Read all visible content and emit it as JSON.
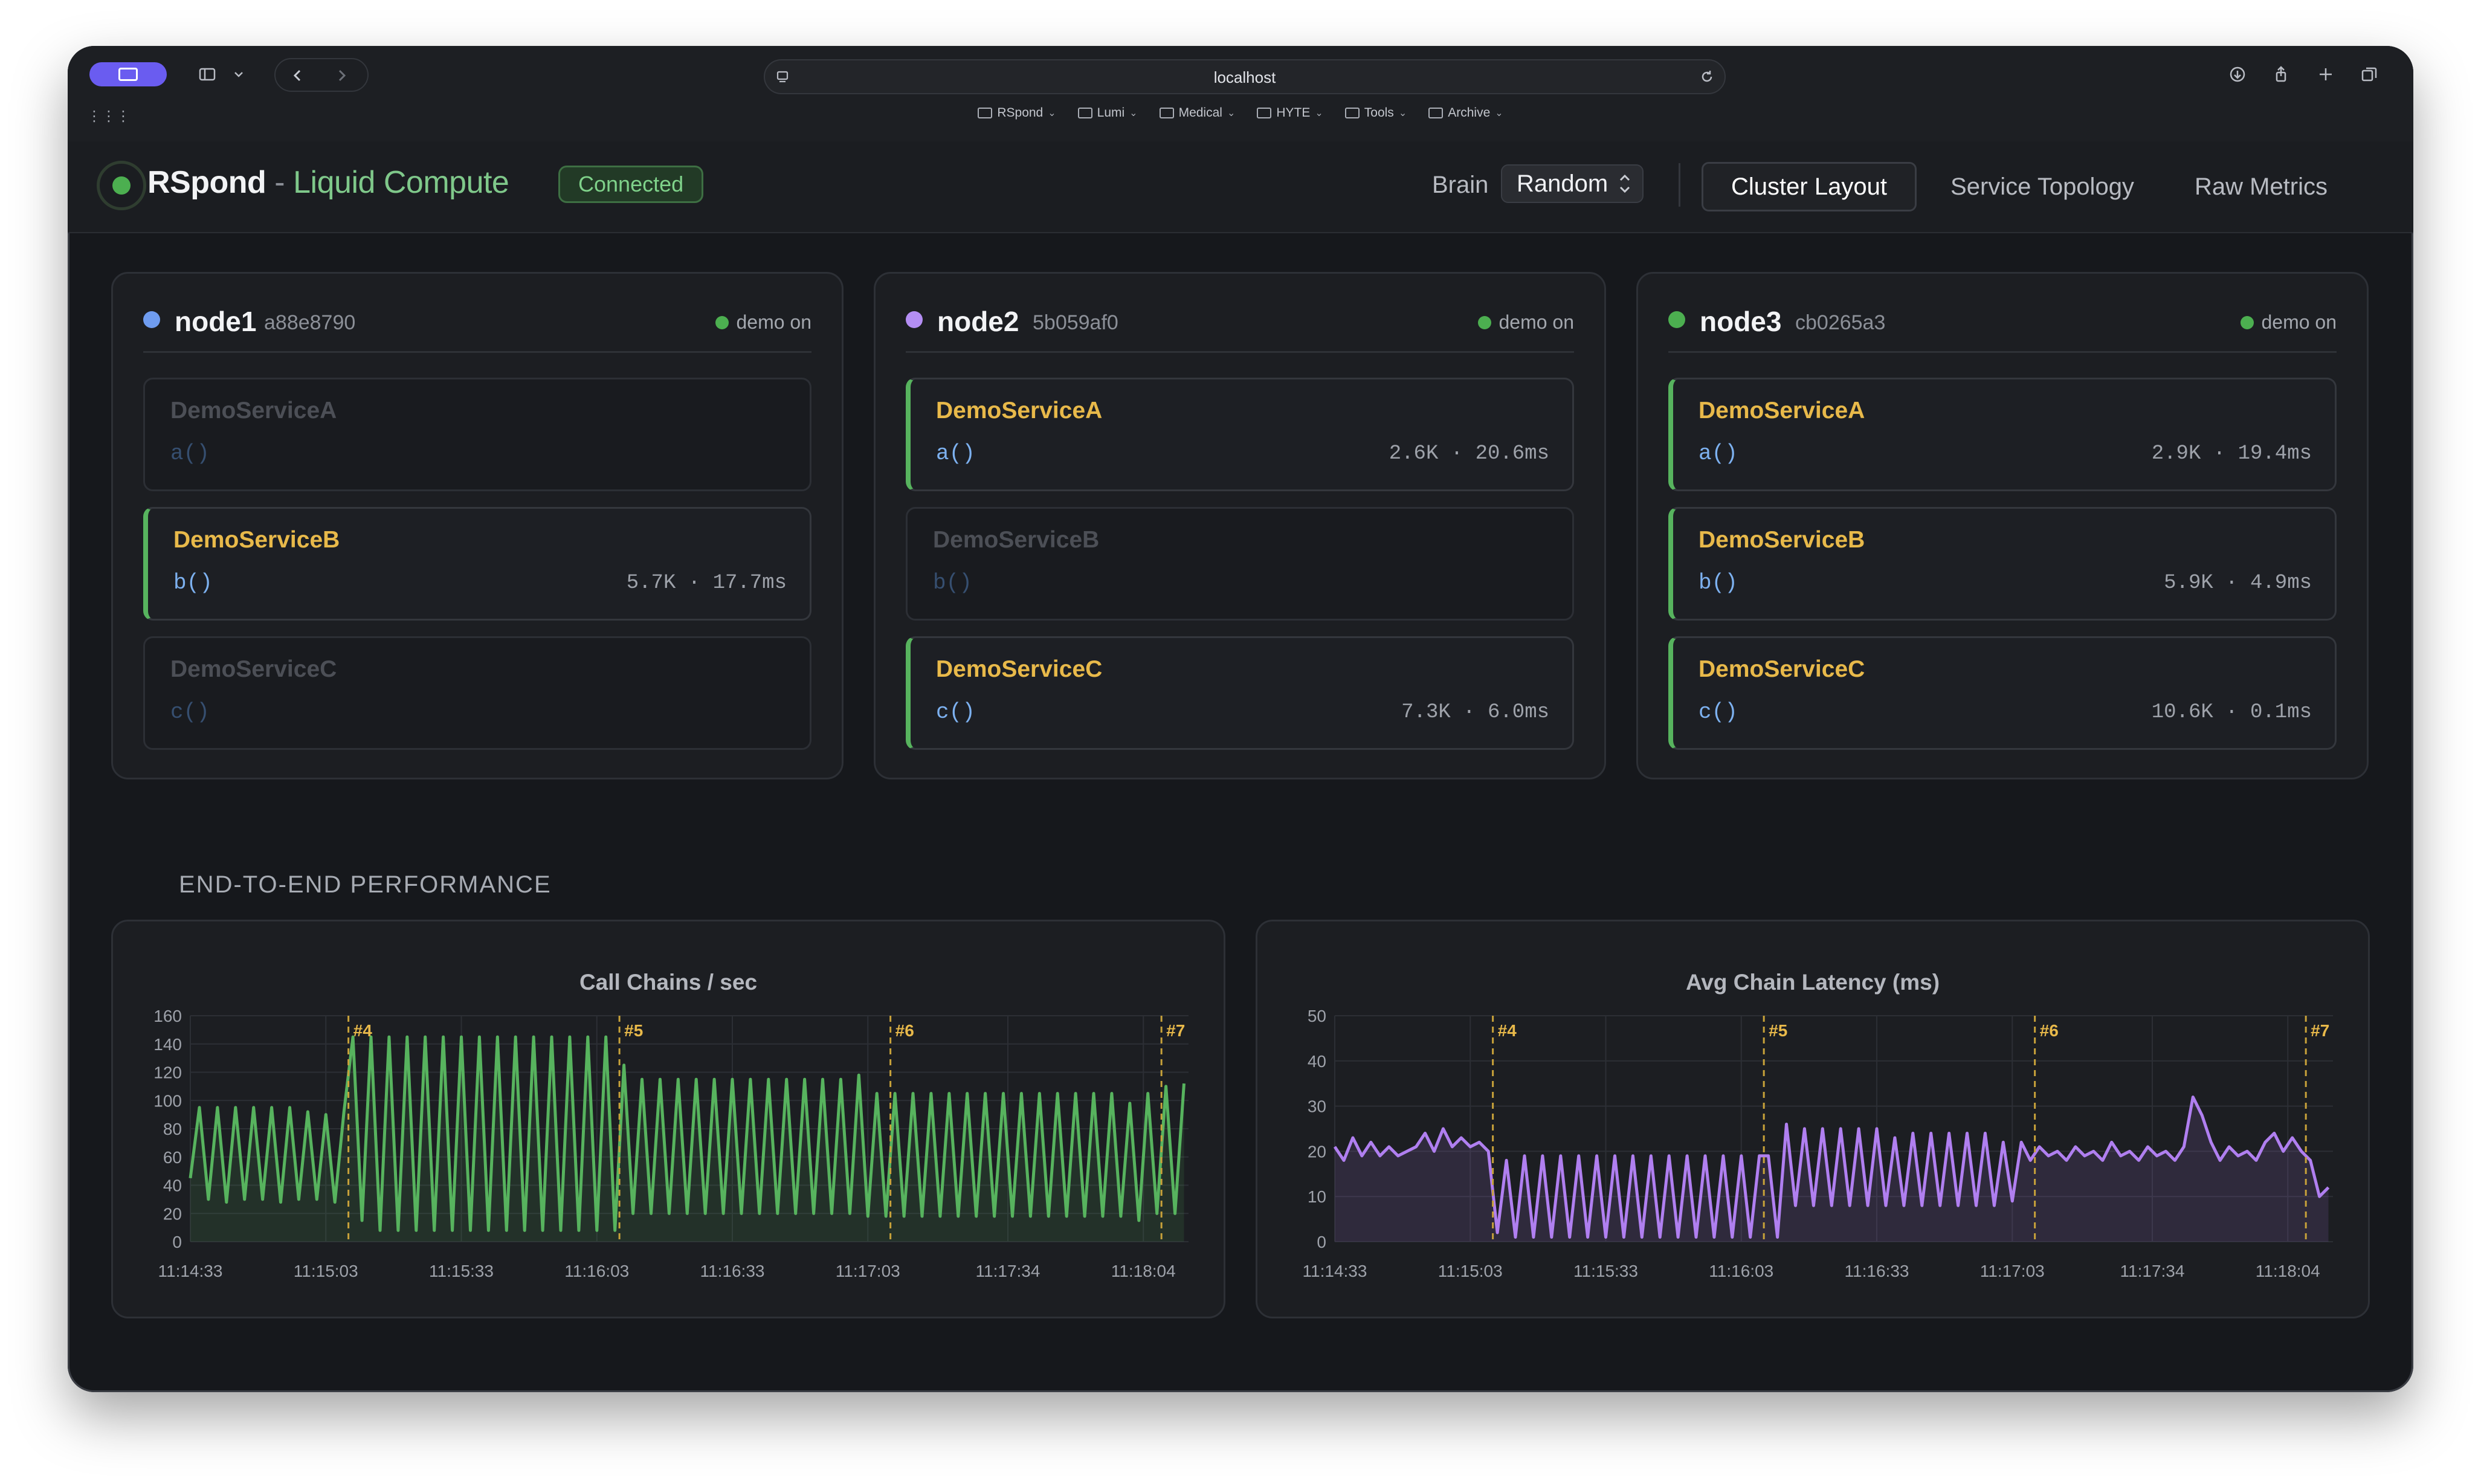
{
  "browser": {
    "url": "localhost",
    "apps_icon": "⋮⋮⋮",
    "bookmarks": [
      {
        "label": "RSpond"
      },
      {
        "label": "Lumi"
      },
      {
        "label": "Medical"
      },
      {
        "label": "HYTE"
      },
      {
        "label": "Tools"
      },
      {
        "label": "Archive"
      }
    ]
  },
  "header": {
    "app_name": "RSpond",
    "separator": "-",
    "subtitle": "Liquid Compute",
    "status": "Connected",
    "brain_label": "Brain",
    "brain_value": "Random",
    "tabs": [
      {
        "label": "Cluster Layout",
        "active": true
      },
      {
        "label": "Service Topology",
        "active": false
      },
      {
        "label": "Raw Metrics",
        "active": false
      }
    ]
  },
  "colors": {
    "node1": "#6f9cf0",
    "node2": "#b48ef4",
    "node3": "#4caf50",
    "active_service": "#e8b94a",
    "accent_green": "#57b35e"
  },
  "nodes": [
    {
      "name": "node1",
      "hash": "a88e8790",
      "demo": "demo on",
      "services": [
        {
          "name": "DemoServiceA",
          "fn": "a()",
          "active": false,
          "metric": ""
        },
        {
          "name": "DemoServiceB",
          "fn": "b()",
          "active": true,
          "metric": "5.7K · 17.7ms"
        },
        {
          "name": "DemoServiceC",
          "fn": "c()",
          "active": false,
          "metric": ""
        }
      ]
    },
    {
      "name": "node2",
      "hash": "5b059af0",
      "demo": "demo on",
      "services": [
        {
          "name": "DemoServiceA",
          "fn": "a()",
          "active": true,
          "metric": "2.6K · 20.6ms"
        },
        {
          "name": "DemoServiceB",
          "fn": "b()",
          "active": false,
          "metric": ""
        },
        {
          "name": "DemoServiceC",
          "fn": "c()",
          "active": true,
          "metric": "7.3K · 6.0ms"
        }
      ]
    },
    {
      "name": "node3",
      "hash": "cb0265a3",
      "demo": "demo on",
      "services": [
        {
          "name": "DemoServiceA",
          "fn": "a()",
          "active": true,
          "metric": "2.9K · 19.4ms"
        },
        {
          "name": "DemoServiceB",
          "fn": "b()",
          "active": true,
          "metric": "5.9K · 4.9ms"
        },
        {
          "name": "DemoServiceC",
          "fn": "c()",
          "active": true,
          "metric": "10.6K · 0.1ms"
        }
      ]
    }
  ],
  "performance": {
    "section_title": "END-TO-END PERFORMANCE"
  },
  "chart_data": [
    {
      "type": "line",
      "title": "Call Chains / sec",
      "color": "#57b35e",
      "ylim": [
        0,
        160
      ],
      "yticks": [
        0,
        20,
        40,
        60,
        80,
        100,
        120,
        140,
        160
      ],
      "xlim": [
        0,
        221
      ],
      "xtick_labels": [
        "11:14:33",
        "11:15:03",
        "11:15:33",
        "11:16:03",
        "11:16:33",
        "11:17:03",
        "11:17:34",
        "11:18:04"
      ],
      "xtick_positions": [
        0,
        30,
        60,
        90,
        120,
        150,
        181,
        211
      ],
      "markers": [
        {
          "label": "#4",
          "x": 35
        },
        {
          "label": "#5",
          "x": 95
        },
        {
          "label": "#6",
          "x": 155
        },
        {
          "label": "#7",
          "x": 215
        }
      ],
      "x": [
        0,
        2,
        4,
        6,
        8,
        10,
        12,
        14,
        16,
        18,
        20,
        22,
        24,
        26,
        28,
        30,
        32,
        34,
        36,
        38,
        40,
        42,
        44,
        46,
        48,
        50,
        52,
        54,
        56,
        58,
        60,
        62,
        64,
        66,
        68,
        70,
        72,
        74,
        76,
        78,
        80,
        82,
        84,
        86,
        88,
        90,
        92,
        94,
        96,
        98,
        100,
        102,
        104,
        106,
        108,
        110,
        112,
        114,
        116,
        118,
        120,
        122,
        124,
        126,
        128,
        130,
        132,
        134,
        136,
        138,
        140,
        142,
        144,
        146,
        148,
        150,
        152,
        154,
        156,
        158,
        160,
        162,
        164,
        166,
        168,
        170,
        172,
        174,
        176,
        178,
        180,
        182,
        184,
        186,
        188,
        190,
        192,
        194,
        196,
        198,
        200,
        202,
        204,
        206,
        208,
        210,
        212,
        214,
        216,
        218,
        220
      ],
      "y": [
        45,
        95,
        30,
        95,
        28,
        95,
        30,
        95,
        30,
        95,
        28,
        95,
        30,
        92,
        30,
        90,
        28,
        92,
        145,
        15,
        145,
        8,
        145,
        8,
        145,
        8,
        145,
        8,
        145,
        8,
        145,
        8,
        145,
        8,
        145,
        8,
        145,
        8,
        145,
        8,
        145,
        8,
        145,
        8,
        145,
        8,
        145,
        8,
        125,
        20,
        115,
        20,
        115,
        20,
        115,
        20,
        115,
        20,
        115,
        20,
        115,
        20,
        115,
        20,
        115,
        20,
        115,
        20,
        115,
        20,
        115,
        20,
        115,
        20,
        118,
        18,
        105,
        18,
        105,
        18,
        105,
        18,
        105,
        18,
        105,
        18,
        105,
        18,
        105,
        18,
        105,
        18,
        105,
        18,
        105,
        18,
        105,
        18,
        105,
        18,
        105,
        18,
        105,
        18,
        98,
        15,
        105,
        20,
        110,
        20,
        112
      ]
    },
    {
      "type": "line",
      "title": "Avg Chain Latency (ms)",
      "color": "#b07ff0",
      "ylim": [
        0,
        50
      ],
      "yticks": [
        0,
        10,
        20,
        30,
        40,
        50
      ],
      "xlim": [
        0,
        221
      ],
      "xtick_labels": [
        "11:14:33",
        "11:15:03",
        "11:15:33",
        "11:16:03",
        "11:16:33",
        "11:17:03",
        "11:17:34",
        "11:18:04"
      ],
      "xtick_positions": [
        0,
        30,
        60,
        90,
        120,
        150,
        181,
        211
      ],
      "markers": [
        {
          "label": "#4",
          "x": 35
        },
        {
          "label": "#5",
          "x": 95
        },
        {
          "label": "#6",
          "x": 155
        },
        {
          "label": "#7",
          "x": 215
        }
      ],
      "x": [
        0,
        2,
        4,
        6,
        8,
        10,
        12,
        14,
        16,
        18,
        20,
        22,
        24,
        26,
        28,
        30,
        32,
        34,
        36,
        38,
        40,
        42,
        44,
        46,
        48,
        50,
        52,
        54,
        56,
        58,
        60,
        62,
        64,
        66,
        68,
        70,
        72,
        74,
        76,
        78,
        80,
        82,
        84,
        86,
        88,
        90,
        92,
        94,
        96,
        98,
        100,
        102,
        104,
        106,
        108,
        110,
        112,
        114,
        116,
        118,
        120,
        122,
        124,
        126,
        128,
        130,
        132,
        134,
        136,
        138,
        140,
        142,
        144,
        146,
        148,
        150,
        152,
        154,
        156,
        158,
        160,
        162,
        164,
        166,
        168,
        170,
        172,
        174,
        176,
        178,
        180,
        182,
        184,
        186,
        188,
        190,
        192,
        194,
        196,
        198,
        200,
        202,
        204,
        206,
        208,
        210,
        212,
        214,
        216,
        218,
        220
      ],
      "y": [
        21,
        18,
        23,
        19,
        22,
        19,
        21,
        19,
        20,
        21,
        24,
        20,
        25,
        21,
        23,
        21,
        22,
        20,
        2,
        18,
        1,
        19,
        1,
        19,
        1,
        19,
        1,
        19,
        1,
        19,
        1,
        19,
        1,
        19,
        1,
        19,
        1,
        19,
        1,
        19,
        1,
        19,
        1,
        19,
        1,
        19,
        1,
        19,
        19,
        1,
        26,
        8,
        25,
        8,
        25,
        8,
        25,
        8,
        25,
        8,
        25,
        8,
        23,
        8,
        24,
        8,
        24,
        8,
        24,
        8,
        24,
        8,
        24,
        8,
        22,
        9,
        22,
        18,
        21,
        19,
        20,
        18,
        21,
        19,
        20,
        18,
        22,
        19,
        20,
        18,
        21,
        19,
        20,
        18,
        21,
        32,
        28,
        22,
        18,
        21,
        19,
        20,
        18,
        22,
        24,
        20,
        23,
        20,
        18,
        10,
        12
      ]
    }
  ]
}
